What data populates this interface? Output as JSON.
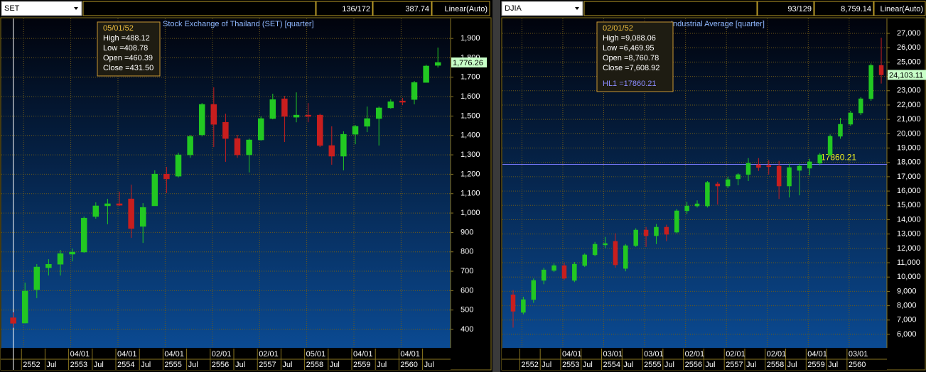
{
  "toolbars": [
    {
      "symbol": "SET",
      "position": "136/172",
      "value": "387.74",
      "scale": "Linear(Auto)"
    },
    {
      "symbol": "DJIA",
      "position": "93/129",
      "value": "8,759.14",
      "scale": "Linear(Auto)"
    }
  ],
  "chart_data": [
    {
      "type": "candlestick",
      "title": "Stock Exchange of Thailand (SET) [quarter]",
      "up_color": "#22c822",
      "down_color": "#c81e1e",
      "grid": true,
      "ylim": [
        305,
        2003
      ],
      "yticks": [
        400,
        500,
        600,
        700,
        800,
        900,
        {
          "value": 1000,
          "label": "1,000"
        },
        {
          "value": 1100,
          "label": "1,100"
        },
        {
          "value": 1200,
          "label": "1,200"
        },
        {
          "value": 1300,
          "label": "1,300"
        },
        {
          "value": 1400,
          "label": "1,400"
        },
        {
          "value": 1500,
          "label": "1,500"
        },
        {
          "value": 1600,
          "label": "1,600"
        },
        {
          "value": 1700,
          "label": "1,700"
        },
        {
          "value": 1800,
          "label": "1,800"
        },
        {
          "value": 1900,
          "label": "1,900"
        }
      ],
      "x_date_labels": [
        null,
        null,
        null,
        null,
        null,
        "04/01",
        null,
        null,
        null,
        "04/01",
        null,
        null,
        null,
        "04/01",
        null,
        null,
        null,
        "02/01",
        null,
        null,
        null,
        "02/01",
        null,
        null,
        null,
        "05/01",
        null,
        null,
        null,
        "04/01",
        null,
        null,
        null,
        "04/01",
        null,
        null,
        null
      ],
      "x_period_labels": [
        null,
        "2552",
        null,
        "Jul",
        null,
        "2553",
        null,
        "Jul",
        null,
        "2554",
        null,
        "Jul",
        null,
        "2555",
        null,
        "Jul",
        null,
        "2556",
        null,
        "Jul",
        null,
        "2557",
        null,
        "Jul",
        null,
        "2558",
        null,
        "Jul",
        null,
        "2559",
        null,
        "Jul",
        null,
        "2560",
        null,
        "Jul",
        null
      ],
      "open": [
        460.39,
        433,
        605,
        718,
        736,
        788,
        799,
        982,
        1037,
        1048,
        1073,
        931,
        1037,
        1201,
        1190,
        1300,
        1403,
        1560,
        1468,
        1384,
        1300,
        1377,
        1487,
        1589,
        1494,
        1505,
        1505,
        1348,
        1293,
        1406,
        1447,
        1487,
        1542,
        1578,
        1585,
        1673,
        1761
      ],
      "high": [
        488.12,
        641,
        737,
        762,
        810,
        817,
        982,
        1055,
        1073,
        1110,
        1146,
        1051,
        1220,
        1238,
        1311,
        1403,
        1567,
        1648,
        1512,
        1403,
        1384,
        1498,
        1615,
        1604,
        1622,
        1567,
        1512,
        1447,
        1421,
        1454,
        1549,
        1549,
        1586,
        1593,
        1681,
        1765,
        1853
      ],
      "low": [
        408.78,
        431,
        561,
        678,
        678,
        751,
        795,
        971,
        942,
        1037,
        872,
        846,
        1037,
        1103,
        1183,
        1285,
        1395,
        1340,
        1264,
        1285,
        1209,
        1373,
        1483,
        1366,
        1468,
        1468,
        1340,
        1249,
        1220,
        1355,
        1417,
        1348,
        1538,
        1556,
        1560,
        1673,
        1750
      ],
      "close": [
        431.5,
        598,
        722,
        736,
        791,
        799,
        974,
        1037,
        1048,
        1040,
        920,
        1029,
        1201,
        1176,
        1300,
        1395,
        1560,
        1457,
        1384,
        1300,
        1377,
        1487,
        1585,
        1498,
        1505,
        1498,
        1348,
        1293,
        1406,
        1447,
        1487,
        1542,
        1574,
        1571,
        1673,
        1758,
        1776.26
      ],
      "last_value_label": "1,776.26",
      "tooltip": {
        "date": "05/01/52",
        "lines": [
          "High =488.12",
          "Low =408.78",
          "Open =460.39",
          "Close =431.50"
        ]
      }
    },
    {
      "type": "candlestick",
      "title": "Industrial Average [quarter]",
      "up_color": "#22c822",
      "down_color": "#c81e1e",
      "grid": true,
      "ylim": [
        5059,
        28041
      ],
      "yticks": [
        {
          "value": 6000,
          "label": "6,000"
        },
        {
          "value": 7000,
          "label": "7,000"
        },
        {
          "value": 8000,
          "label": "8,000"
        },
        {
          "value": 9000,
          "label": "9,000"
        },
        {
          "value": 10000,
          "label": "10,000"
        },
        {
          "value": 11000,
          "label": "11,000"
        },
        {
          "value": 12000,
          "label": "12,000"
        },
        {
          "value": 13000,
          "label": "13,000"
        },
        {
          "value": 14000,
          "label": "14,000"
        },
        {
          "value": 15000,
          "label": "15,000"
        },
        {
          "value": 16000,
          "label": "16,000"
        },
        {
          "value": 17000,
          "label": "17,000"
        },
        {
          "value": 18000,
          "label": "18,000"
        },
        {
          "value": 19000,
          "label": "19,000"
        },
        {
          "value": 20000,
          "label": "20,000"
        },
        {
          "value": 21000,
          "label": "21,000"
        },
        {
          "value": 22000,
          "label": "22,000"
        },
        {
          "value": 23000,
          "label": "23,000"
        },
        {
          "value": 24000,
          "label": "24,000"
        },
        {
          "value": 25000,
          "label": "25,000"
        },
        {
          "value": 26000,
          "label": "26,000"
        },
        {
          "value": 27000,
          "label": "27,000"
        }
      ],
      "x_date_labels": [
        null,
        null,
        null,
        null,
        null,
        "04/01",
        null,
        null,
        null,
        "03/01",
        null,
        null,
        null,
        "03/01",
        null,
        null,
        null,
        "02/01",
        null,
        null,
        null,
        "02/01",
        null,
        null,
        null,
        "02/01",
        null,
        null,
        null,
        "04/01",
        null,
        null,
        null,
        "03/01",
        null,
        null,
        null
      ],
      "x_period_labels": [
        null,
        "2552",
        null,
        "Jul",
        null,
        "2553",
        null,
        "Jul",
        null,
        "2554",
        null,
        "Jul",
        null,
        "2555",
        null,
        "Jul",
        null,
        "2556",
        null,
        "Jul",
        null,
        "2557",
        null,
        "Jul",
        null,
        "2558",
        null,
        "Jul",
        null,
        "2559",
        null,
        "Jul",
        null,
        "2560",
        null,
        null,
        null
      ],
      "open": [
        8760.78,
        7535,
        8427,
        9764,
        10458,
        10800,
        9764,
        10800,
        11550,
        12240,
        12490,
        10600,
        12190,
        13280,
        12880,
        13480,
        13130,
        14620,
        14960,
        14960,
        16500,
        16350,
        16850,
        17150,
        17840,
        17790,
        17740,
        16350,
        17440,
        17590,
        17940,
        18530,
        19820,
        20660,
        21450,
        22440,
        24770
      ],
      "high": [
        9088.06,
        8625,
        9900,
        10650,
        10950,
        11000,
        11050,
        11650,
        12450,
        12800,
        13050,
        12300,
        13400,
        13500,
        13700,
        13650,
        14750,
        15250,
        15350,
        16700,
        16650,
        17000,
        17250,
        18300,
        18300,
        18150,
        18100,
        17900,
        17900,
        18250,
        18650,
        19950,
        21100,
        21600,
        22550,
        24900,
        26700
      ],
      "low": [
        6469.95,
        7400,
        8200,
        9500,
        10350,
        9800,
        9650,
        10700,
        11450,
        12000,
        10650,
        10400,
        12100,
        12100,
        12300,
        12500,
        13050,
        14400,
        14850,
        14850,
        15050,
        16200,
        16400,
        16700,
        17400,
        17150,
        15450,
        15550,
        15700,
        17100,
        17800,
        18400,
        19650,
        20550,
        21300,
        22300,
        23500
      ],
      "close": [
        7608.92,
        8427,
        9764,
        10500,
        10800,
        9913,
        10900,
        11550,
        12290,
        12340,
        10850,
        12190,
        13280,
        12880,
        13480,
        12980,
        14620,
        14960,
        15110,
        16600,
        16350,
        16800,
        17150,
        17940,
        17640,
        17700,
        16350,
        17640,
        17740,
        18040,
        18530,
        19820,
        20660,
        21450,
        22440,
        24770,
        24103.11
      ],
      "last_value_label": "24,103.11",
      "hline": {
        "name": "HL1",
        "value": 17860.21,
        "label": "17860.21",
        "color": "#7a7aff"
      },
      "tooltip": {
        "date": "02/01/52",
        "lines": [
          "High =9,088.06",
          "Low =6,469.95",
          "Open =8,760.78",
          "Close =7,608.92"
        ],
        "reference": "HL1 =17860.21"
      }
    }
  ]
}
